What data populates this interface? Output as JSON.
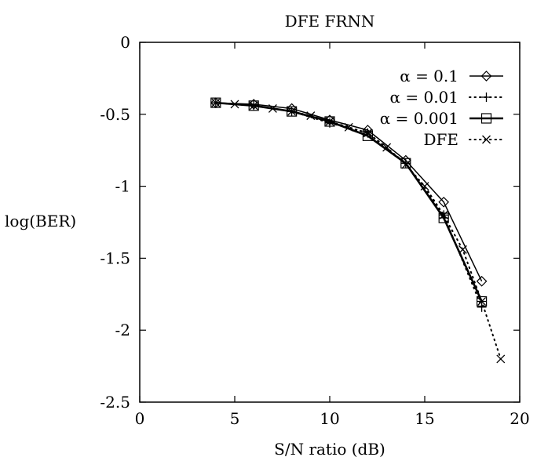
{
  "chart_data": {
    "type": "line",
    "title": "DFE FRNN",
    "xlabel": "S/N ratio (dB)",
    "ylabel": "log(BER)",
    "xlim": [
      0,
      20
    ],
    "ylim": [
      -2.5,
      0
    ],
    "xticks": [
      "0",
      "5",
      "10",
      "15",
      "20"
    ],
    "yticks": [
      "0",
      "-0.5",
      "-1",
      "-1.5",
      "-2",
      "-2.5"
    ],
    "grid": false,
    "legend_position": "top-right",
    "series": [
      {
        "name": "α = 0.1",
        "marker": "diamond",
        "line": "solid",
        "x": [
          4,
          6,
          8,
          10,
          12,
          14,
          16,
          18
        ],
        "y": [
          -0.42,
          -0.43,
          -0.46,
          -0.54,
          -0.61,
          -0.82,
          -1.11,
          -1.66
        ]
      },
      {
        "name": "α = 0.01",
        "marker": "plus",
        "line": "dotted",
        "x": [
          4,
          6,
          8,
          10,
          12,
          14,
          16,
          18
        ],
        "y": [
          -0.42,
          -0.44,
          -0.48,
          -0.56,
          -0.63,
          -0.84,
          -1.2,
          -1.84
        ]
      },
      {
        "name": "α = 0.001",
        "marker": "square",
        "line": "solid-thick",
        "x": [
          4,
          6,
          8,
          10,
          12,
          14,
          16,
          18
        ],
        "y": [
          -0.42,
          -0.44,
          -0.48,
          -0.55,
          -0.65,
          -0.84,
          -1.22,
          -1.8
        ]
      },
      {
        "name": "DFE",
        "marker": "cross",
        "line": "dotted",
        "x": [
          4,
          5,
          6,
          7,
          8,
          9,
          10,
          11,
          12,
          13,
          14,
          15,
          16,
          17,
          18,
          19
        ],
        "y": [
          -0.42,
          -0.43,
          -0.44,
          -0.46,
          -0.48,
          -0.51,
          -0.55,
          -0.59,
          -0.63,
          -0.73,
          -0.85,
          -1.0,
          -1.2,
          -1.44,
          -1.8,
          -2.2
        ]
      }
    ]
  }
}
